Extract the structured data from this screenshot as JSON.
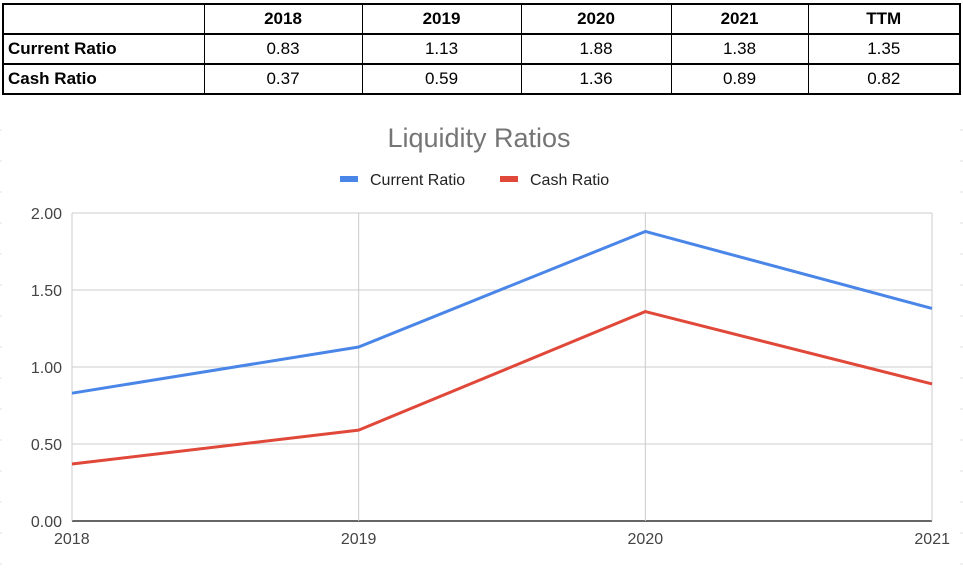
{
  "table": {
    "columns": [
      "2018",
      "2019",
      "2020",
      "2021",
      "TTM"
    ],
    "rows": [
      {
        "label": "Current Ratio",
        "values": [
          "0.83",
          "1.13",
          "1.88",
          "1.38",
          "1.35"
        ]
      },
      {
        "label": "Cash Ratio",
        "values": [
          "0.37",
          "0.59",
          "1.36",
          "0.89",
          "0.82"
        ]
      }
    ]
  },
  "chart_data": {
    "type": "line",
    "title": "Liquidity Ratios",
    "categories": [
      "2018",
      "2019",
      "2020",
      "2021"
    ],
    "series": [
      {
        "name": "Current Ratio",
        "color": "#4a86e8",
        "values": [
          0.83,
          1.13,
          1.88,
          1.38
        ]
      },
      {
        "name": "Cash Ratio",
        "color": "#e0483a",
        "values": [
          0.37,
          0.59,
          1.36,
          0.89
        ]
      }
    ],
    "yticks": [
      "0.00",
      "0.50",
      "1.00",
      "1.50",
      "2.00"
    ],
    "ylim": [
      0,
      2
    ],
    "grid": true,
    "legend": "top"
  }
}
